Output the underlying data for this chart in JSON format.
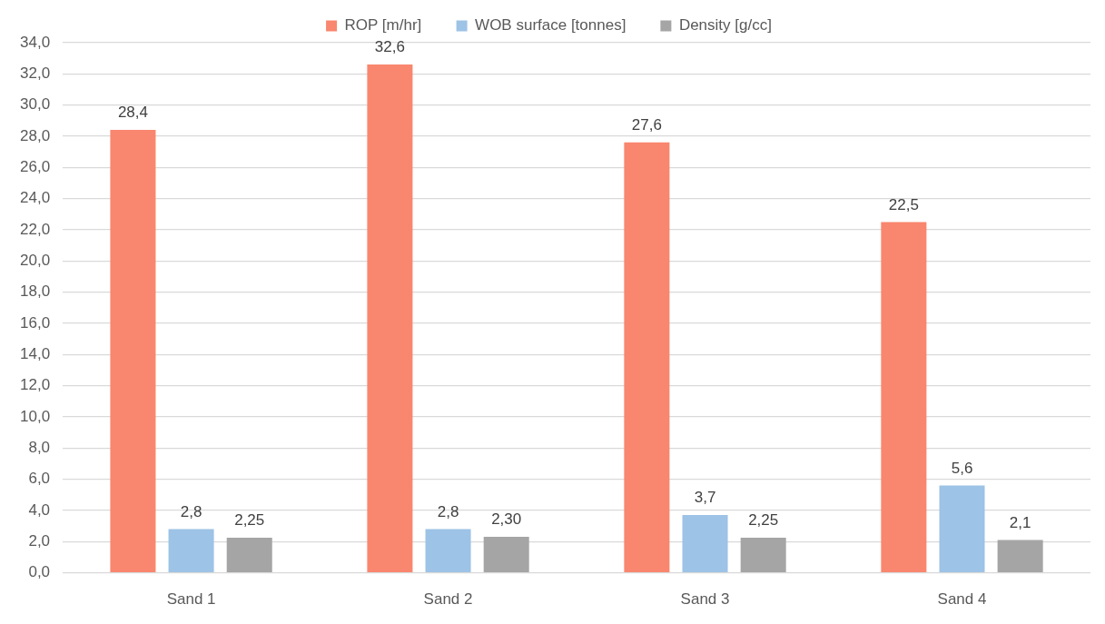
{
  "chart_data": {
    "type": "bar",
    "categories": [
      "Sand 1",
      "Sand 2",
      "Sand 3",
      "Sand 4"
    ],
    "series": [
      {
        "name": "ROP [m/hr]",
        "color": "#f9866e",
        "values": [
          28.4,
          32.6,
          27.6,
          22.5
        ],
        "value_labels": [
          "28,4",
          "32,6",
          "27,6",
          "22,5"
        ]
      },
      {
        "name": "WOB surface [tonnes]",
        "color": "#9dc3e6",
        "values": [
          2.8,
          2.8,
          3.7,
          5.6
        ],
        "value_labels": [
          "2,8",
          "2,8",
          "3,7",
          "5,6"
        ]
      },
      {
        "name": "Density [g/cc]",
        "color": "#a5a5a5",
        "values": [
          2.25,
          2.3,
          2.25,
          2.1
        ],
        "value_labels": [
          "2,25",
          "2,30",
          "2,25",
          "2,1"
        ]
      }
    ],
    "ylim": [
      0,
      34
    ],
    "yticks": [
      {
        "value": 0,
        "label": "0,0"
      },
      {
        "value": 2,
        "label": "2,0"
      },
      {
        "value": 4,
        "label": "4,0"
      },
      {
        "value": 6,
        "label": "6,0"
      },
      {
        "value": 8,
        "label": "8,0"
      },
      {
        "value": 10,
        "label": "10,0"
      },
      {
        "value": 12,
        "label": "12,0"
      },
      {
        "value": 14,
        "label": "14,0"
      },
      {
        "value": 16,
        "label": "16,0"
      },
      {
        "value": 18,
        "label": "18,0"
      },
      {
        "value": 20,
        "label": "20,0"
      },
      {
        "value": 22,
        "label": "22,0"
      },
      {
        "value": 24,
        "label": "24,0"
      },
      {
        "value": 26,
        "label": "26,0"
      },
      {
        "value": 28,
        "label": "28,0"
      },
      {
        "value": 30,
        "label": "30,0"
      },
      {
        "value": 32,
        "label": "32,0"
      },
      {
        "value": 34,
        "label": "34,0"
      }
    ],
    "grid": "y",
    "legend": "top"
  }
}
